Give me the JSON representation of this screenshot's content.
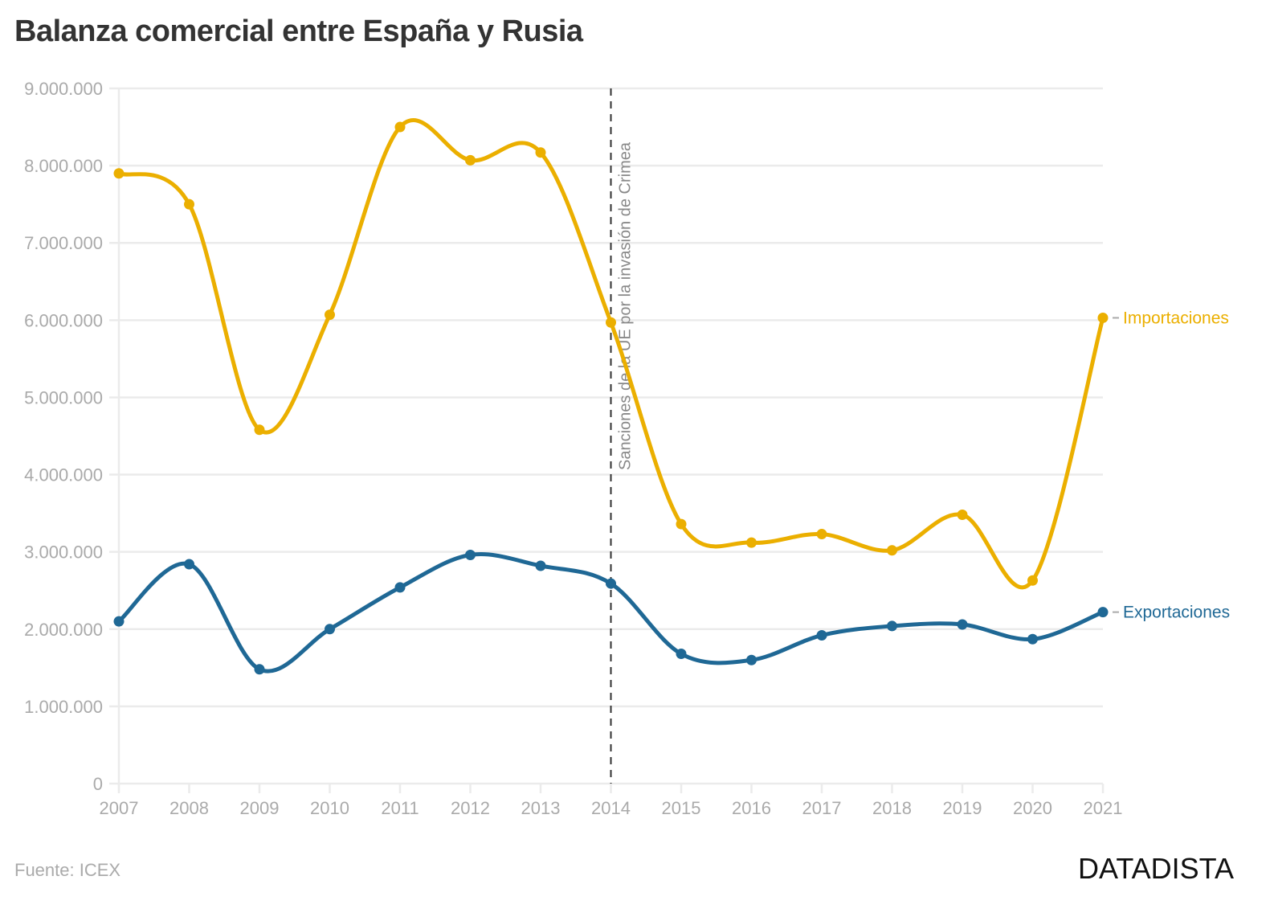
{
  "header": {
    "title": "Balanza comercial entre España y Rusia"
  },
  "footer": {
    "source": "Fuente: ICEX",
    "brand": "DATADISTA"
  },
  "chart_data": {
    "type": "line",
    "title": "Balanza comercial entre España y Rusia",
    "xlabel": "",
    "ylabel": "",
    "x": [
      2007,
      2008,
      2009,
      2010,
      2011,
      2012,
      2013,
      2014,
      2015,
      2016,
      2017,
      2018,
      2019,
      2020,
      2021
    ],
    "x_tick_labels": [
      "2007",
      "2008",
      "2009",
      "2010",
      "2011",
      "2012",
      "2013",
      "2014",
      "2015",
      "2016",
      "2017",
      "2018",
      "2019",
      "2020",
      "2021"
    ],
    "ylim": [
      0,
      9000000
    ],
    "y_ticks": [
      0,
      1000000,
      2000000,
      3000000,
      4000000,
      5000000,
      6000000,
      7000000,
      8000000,
      9000000
    ],
    "y_tick_labels": [
      "0",
      "1.000.000",
      "2.000.000",
      "3.000.000",
      "4.000.000",
      "5.000.000",
      "6.000.000",
      "7.000.000",
      "8.000.000",
      "9.000.000"
    ],
    "grid": true,
    "curve": "smooth",
    "series": [
      {
        "name": "Importaciones",
        "color": "#EBAF00",
        "values": [
          7900000,
          7500000,
          4580000,
          6070000,
          8500000,
          8070000,
          8170000,
          5970000,
          3360000,
          3120000,
          3230000,
          3020000,
          3480000,
          2630000,
          6030000
        ]
      },
      {
        "name": "Exportaciones",
        "color": "#1F6895",
        "values": [
          2100000,
          2840000,
          1480000,
          2000000,
          2540000,
          2960000,
          2820000,
          2590000,
          1680000,
          1600000,
          1920000,
          2040000,
          2060000,
          1870000,
          2220000
        ]
      }
    ],
    "legend": "direct-labels-right",
    "annotations": [
      {
        "type": "vline",
        "x": 2014,
        "style": "dashed",
        "color": "#333333",
        "text": "Sanciones de la UE por la invasión de Crimea"
      }
    ]
  }
}
